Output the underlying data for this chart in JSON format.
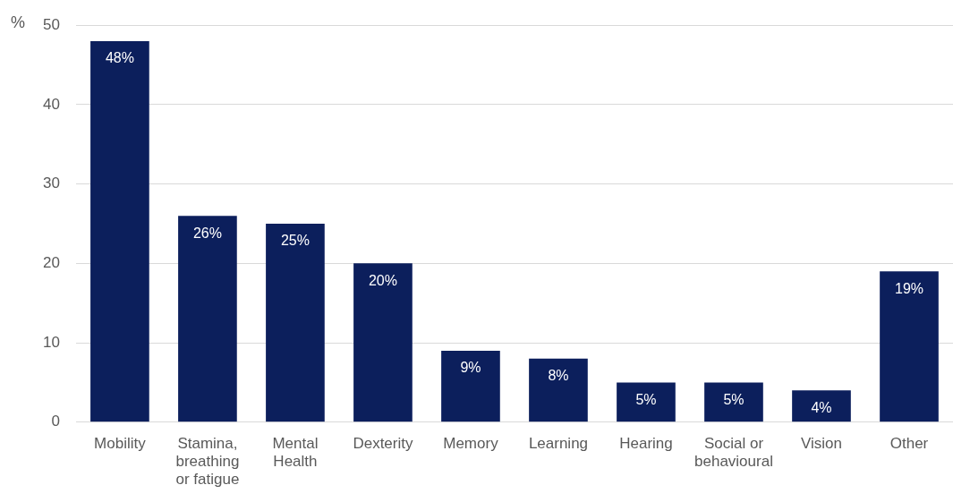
{
  "chart_data": {
    "type": "bar",
    "ylabel": "%",
    "categories": [
      "Mobility",
      "Stamina, breathing or fatigue",
      "Mental Health",
      "Dexterity",
      "Memory",
      "Learning",
      "Hearing",
      "Social or behavioural",
      "Vision",
      "Other"
    ],
    "values": [
      48,
      26,
      25,
      20,
      9,
      8,
      5,
      5,
      4,
      19
    ],
    "value_labels": [
      "48%",
      "26%",
      "25%",
      "20%",
      "9%",
      "8%",
      "5%",
      "5%",
      "4%",
      "19%"
    ],
    "color": "#0c1f5c",
    "ylim": [
      0,
      50
    ],
    "yticks": [
      0,
      10,
      20,
      30,
      40,
      50
    ],
    "grid": "y",
    "legend": false
  }
}
